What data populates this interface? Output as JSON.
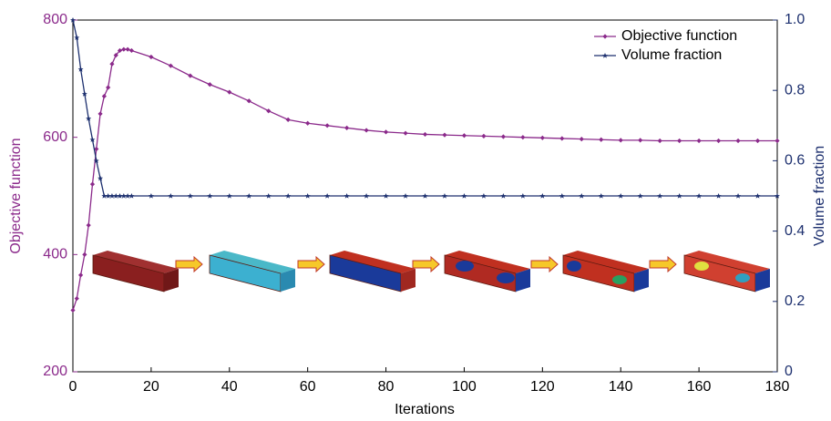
{
  "chart_data": {
    "type": "line",
    "x_label": "Iterations",
    "y_label": "Objective function",
    "y2_label": "Volume fraction",
    "x": [
      0,
      1,
      2,
      3,
      4,
      5,
      6,
      7,
      8,
      9,
      10,
      11,
      12,
      13,
      14,
      15,
      20,
      25,
      30,
      35,
      40,
      45,
      50,
      55,
      60,
      65,
      70,
      75,
      80,
      85,
      90,
      95,
      100,
      105,
      110,
      115,
      120,
      125,
      130,
      135,
      140,
      145,
      150,
      155,
      160,
      165,
      170,
      175,
      180
    ],
    "series": [
      {
        "name": "Objective function",
        "color": "#8b2a8b",
        "axis": "y",
        "values": [
          305,
          325,
          365,
          400,
          450,
          520,
          580,
          640,
          670,
          685,
          725,
          740,
          748,
          750,
          750,
          748,
          737,
          722,
          705,
          690,
          677,
          662,
          645,
          630,
          624,
          620,
          616,
          612,
          609,
          607,
          605,
          604,
          603,
          602,
          601,
          600,
          599,
          598,
          597,
          596,
          595,
          595,
          594,
          594,
          594,
          594,
          594,
          594,
          594
        ]
      },
      {
        "name": "Volume fraction",
        "color": "#1c2f6e",
        "axis": "y2",
        "values": [
          1.0,
          0.95,
          0.86,
          0.79,
          0.72,
          0.66,
          0.6,
          0.55,
          0.5,
          0.5,
          0.5,
          0.5,
          0.5,
          0.5,
          0.5,
          0.5,
          0.5,
          0.5,
          0.5,
          0.5,
          0.5,
          0.5,
          0.5,
          0.5,
          0.5,
          0.5,
          0.5,
          0.5,
          0.5,
          0.5,
          0.5,
          0.5,
          0.5,
          0.5,
          0.5,
          0.5,
          0.5,
          0.5,
          0.5,
          0.5,
          0.5,
          0.5,
          0.5,
          0.5,
          0.5,
          0.5,
          0.5,
          0.5,
          0.5
        ]
      }
    ],
    "xlim": [
      0,
      180
    ],
    "xticks": [
      0,
      20,
      40,
      60,
      80,
      100,
      120,
      140,
      160,
      180
    ],
    "ylim": [
      200,
      800
    ],
    "yticks": [
      200,
      400,
      600,
      800
    ],
    "y2lim": [
      0,
      1
    ],
    "y2ticks": [
      0,
      0.2,
      0.4,
      0.6,
      0.8,
      {
        "value": 1,
        "label": "1.0"
      }
    ],
    "legend": "upper right"
  }
}
